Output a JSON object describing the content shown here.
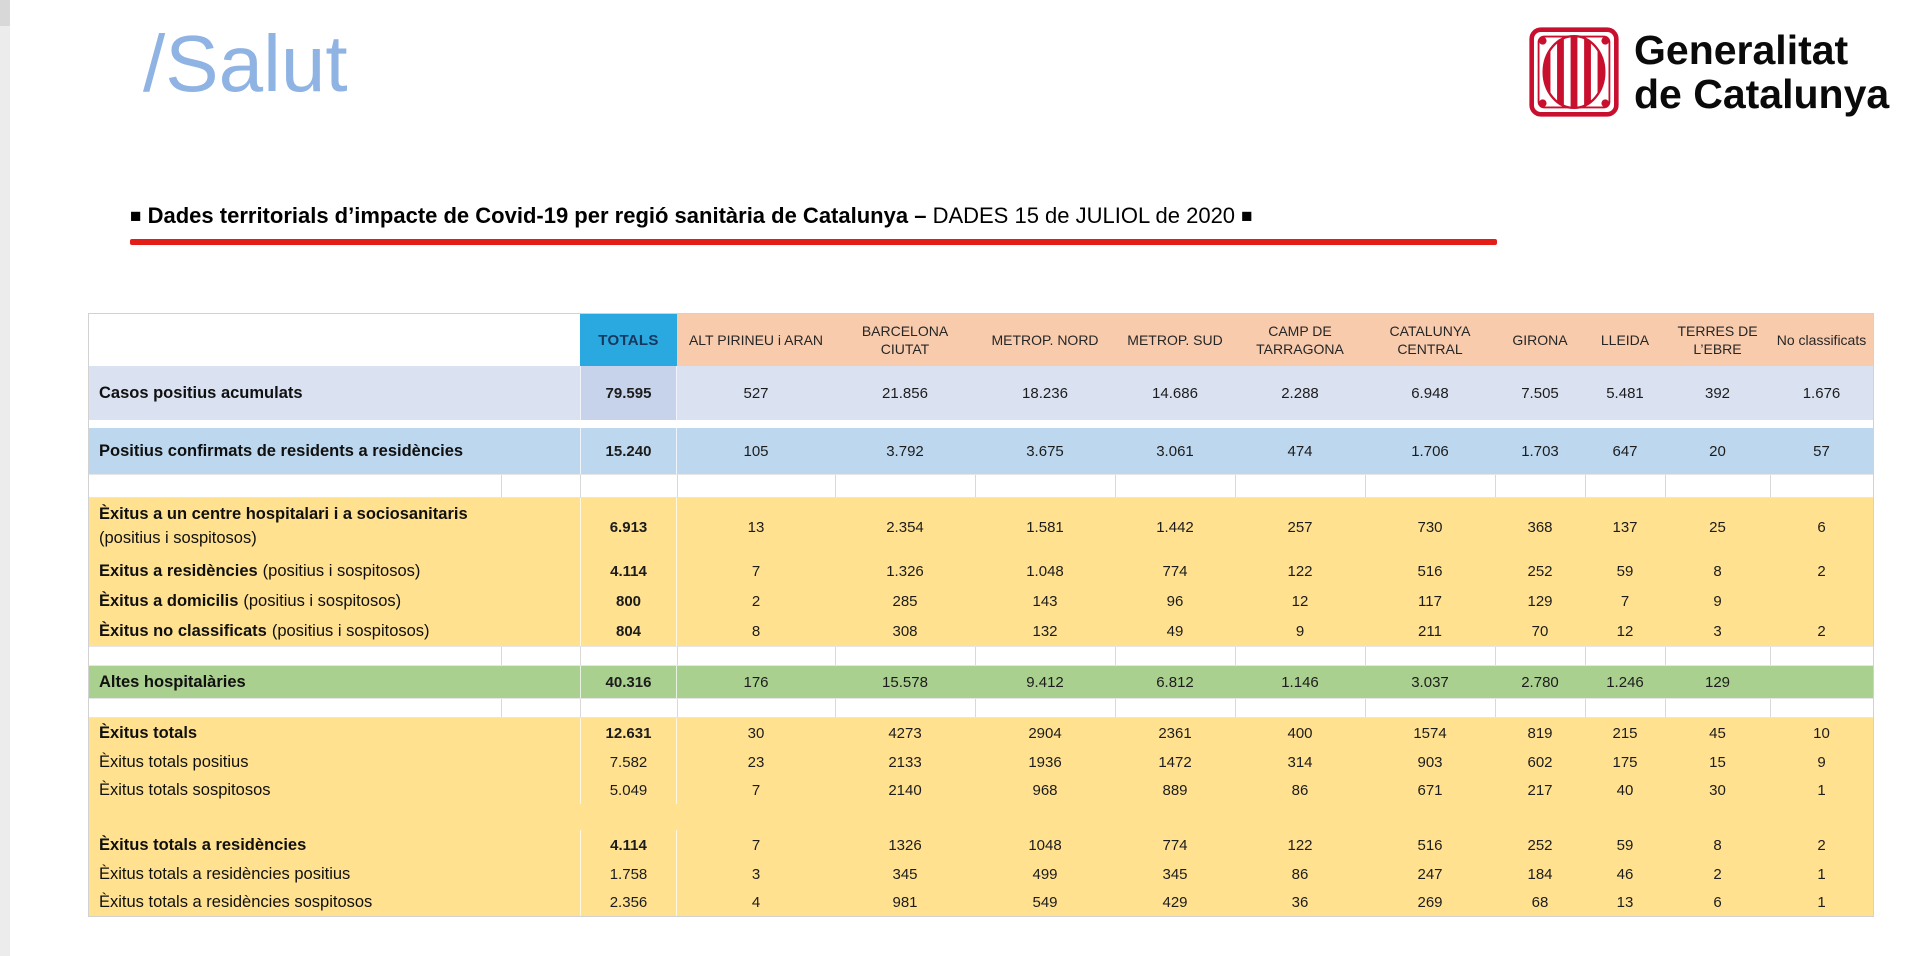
{
  "brand": {
    "salut_logo": "/Salut",
    "generalitat_line1": "Generalitat",
    "generalitat_line2": "de Catalunya"
  },
  "title": {
    "lead_square": "■",
    "bold_part": "Dades territorials d’impacte de Covid-19 per regió sanitària de Catalunya –",
    "regular_part": " DADES 15 de JULIOL de 2020 ",
    "end_square": "■"
  },
  "colors": {
    "salut_blue": "#8FB3E3",
    "underline_red": "#E31E18",
    "header_peach": "#F8CBAD",
    "totals_cyan": "#29A9E0",
    "row_lavender": "#DAE1F1",
    "row_lavender_total": "#C7D3EA",
    "row_blue": "#BDD7EE",
    "row_yellow": "#FFE18F",
    "row_green": "#A9D08E",
    "grid": "#D9D9D9"
  },
  "table": {
    "header": {
      "totals": "TOTALS",
      "regions": [
        "ALT PIRINEU i ARAN",
        "BARCELONA CIUTAT",
        "METROP. NORD",
        "METROP. SUD",
        "CAMP DE TARRAGONA",
        "CATALUNYA CENTRAL",
        "GIRONA",
        "LLEIDA",
        "TERRES DE L’EBRE",
        "No classificats"
      ]
    },
    "rows": [
      {
        "kind": "data",
        "bg": "lavender",
        "label": "Casos positius acumulats",
        "note": "",
        "note_position": "inline",
        "labelBold": true,
        "totalBold": true,
        "values": [
          "79.595",
          "527",
          "21.856",
          "18.236",
          "14.686",
          "2.288",
          "6.948",
          "7.505",
          "5.481",
          "392",
          "1.676"
        ]
      },
      {
        "kind": "gap",
        "bg": "white"
      },
      {
        "kind": "data",
        "bg": "blue",
        "label": "Positius confirmats de residents a residències",
        "note": "",
        "note_position": "inline",
        "labelBold": true,
        "totalBold": true,
        "values": [
          "15.240",
          "105",
          "3.792",
          "3.675",
          "3.061",
          "474",
          "1.706",
          "1.703",
          "647",
          "20",
          "57"
        ]
      },
      {
        "kind": "gap",
        "bg": "white"
      },
      {
        "kind": "data",
        "bg": "yellow",
        "label": "Èxitus a un centre hospitalari i a sociosanitaris",
        "note": "(positius i sospitosos)",
        "note_position": "below",
        "labelBold": true,
        "totalBold": true,
        "values": [
          "6.913",
          "13",
          "2.354",
          "1.581",
          "1.442",
          "257",
          "730",
          "368",
          "137",
          "25",
          "6"
        ]
      },
      {
        "kind": "data",
        "bg": "yellow",
        "label": "Exitus a residències",
        "note": "(positius i sospitosos)",
        "note_position": "inline",
        "labelBold": true,
        "totalBold": true,
        "values": [
          "4.114",
          "7",
          "1.326",
          "1.048",
          "774",
          "122",
          "516",
          "252",
          "59",
          "8",
          "2"
        ]
      },
      {
        "kind": "data",
        "bg": "yellow",
        "label": "Èxitus a domicilis",
        "note": "(positius i sospitosos)",
        "note_position": "inline",
        "labelBold": true,
        "totalBold": true,
        "values": [
          "800",
          "2",
          "285",
          "143",
          "96",
          "12",
          "117",
          "129",
          "7",
          "9",
          ""
        ]
      },
      {
        "kind": "data",
        "bg": "yellow",
        "label": "Èxitus no classificats",
        "note": "(positius i sospitosos)",
        "note_position": "inline",
        "labelBold": true,
        "totalBold": true,
        "values": [
          "804",
          "8",
          "308",
          "132",
          "49",
          "9",
          "211",
          "70",
          "12",
          "3",
          "2"
        ]
      },
      {
        "kind": "gap",
        "bg": "white"
      },
      {
        "kind": "data",
        "bg": "green",
        "label": "Altes hospitalàries",
        "note": "",
        "note_position": "inline",
        "labelBold": true,
        "totalBold": true,
        "values": [
          "40.316",
          "176",
          "15.578",
          "9.412",
          "6.812",
          "1.146",
          "3.037",
          "2.780",
          "1.246",
          "129",
          ""
        ]
      },
      {
        "kind": "gap",
        "bg": "white"
      },
      {
        "kind": "data",
        "bg": "yellow",
        "label": "Èxitus totals",
        "note": "",
        "note_position": "inline",
        "labelBold": true,
        "totalBold": true,
        "values": [
          "12.631",
          "30",
          "4273",
          "2904",
          "2361",
          "400",
          "1574",
          "819",
          "215",
          "45",
          "10"
        ]
      },
      {
        "kind": "data",
        "bg": "yellow",
        "label": "Èxitus totals positius",
        "note": "",
        "note_position": "inline",
        "labelBold": false,
        "totalBold": false,
        "values": [
          "7.582",
          "23",
          "2133",
          "1936",
          "1472",
          "314",
          "903",
          "602",
          "175",
          "15",
          "9"
        ]
      },
      {
        "kind": "data",
        "bg": "yellow",
        "label": "Èxitus totals sospitosos",
        "note": "",
        "note_position": "inline",
        "labelBold": false,
        "totalBold": false,
        "values": [
          "5.049",
          "7",
          "2140",
          "968",
          "889",
          "86",
          "671",
          "217",
          "40",
          "30",
          "1"
        ]
      },
      {
        "kind": "gap",
        "bg": "yellow"
      },
      {
        "kind": "data",
        "bg": "yellow",
        "label": "Èxitus totals a residències",
        "note": "",
        "note_position": "inline",
        "labelBold": true,
        "totalBold": true,
        "values": [
          "4.114",
          "7",
          "1326",
          "1048",
          "774",
          "122",
          "516",
          "252",
          "59",
          "8",
          "2"
        ]
      },
      {
        "kind": "data",
        "bg": "yellow",
        "label": "Èxitus totals a residències positius",
        "note": "",
        "note_position": "inline",
        "labelBold": false,
        "totalBold": false,
        "values": [
          "1.758",
          "3",
          "345",
          "499",
          "345",
          "86",
          "247",
          "184",
          "46",
          "2",
          "1"
        ]
      },
      {
        "kind": "data",
        "bg": "yellow",
        "label": "Èxitus totals a residències sospitosos",
        "note": "",
        "note_position": "inline",
        "labelBold": false,
        "totalBold": false,
        "values": [
          "2.356",
          "4",
          "981",
          "549",
          "429",
          "36",
          "269",
          "68",
          "13",
          "6",
          "1"
        ]
      }
    ]
  }
}
